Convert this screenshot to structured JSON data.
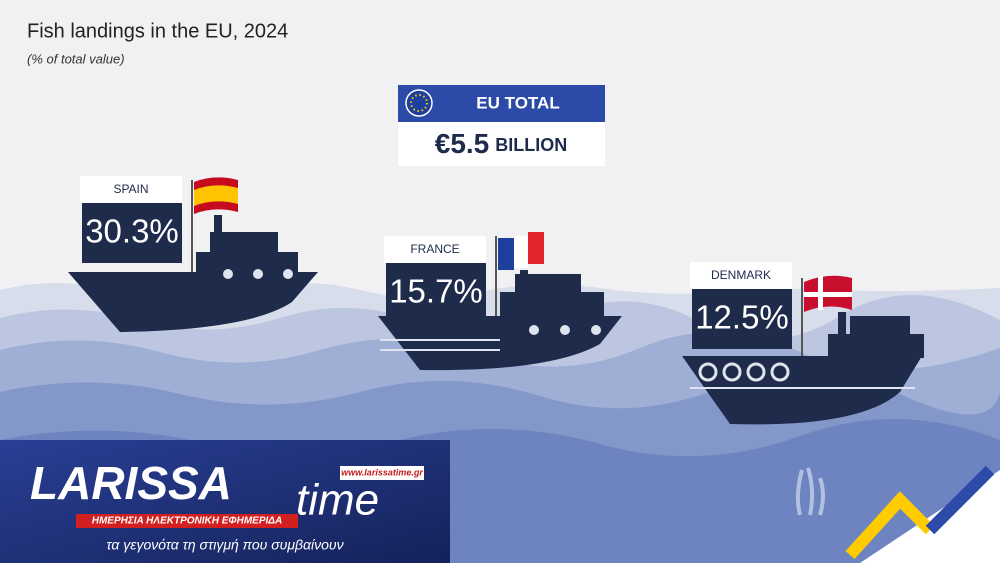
{
  "header": {
    "title": "Fish landings in the EU, 2024",
    "subtitle": "(% of total value)"
  },
  "eu_total": {
    "label": "EU TOTAL",
    "amount": "€5.5",
    "unit": "BILLION"
  },
  "countries": [
    {
      "name": "SPAIN",
      "value": "30.3%"
    },
    {
      "name": "FRANCE",
      "value": "15.7%"
    },
    {
      "name": "DENMARK",
      "value": "12.5%"
    }
  ],
  "logo": {
    "url": "www.larissatime.gr",
    "name": "LARISSA",
    "word": "time",
    "tagline": "ΗΜΕΡΗΣΙΑ ΗΛΕΚΤΡΟΝΙΚΗ ΕΦΗΜΕΡΙΔΑ",
    "slogan": "τα γεγονότα τη στιγμή που συμβαίνουν"
  }
}
